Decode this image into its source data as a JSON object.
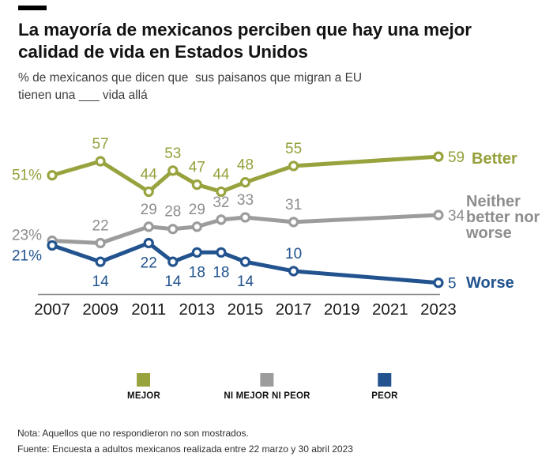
{
  "chart_data": {
    "type": "line",
    "title": "La mayoría de mexicanos perciben que hay una mejor calidad de vida en Estados Unidos",
    "title_lines": [
      "La mayoría de mexicanos perciben que hay una mejor",
      "calidad de vida en Estados Unidos"
    ],
    "subtitle_lines": [
      "% de mexicanos que dicen que  sus paisanos que migran a EU",
      "tienen una ___ vida allá"
    ],
    "x": [
      2007,
      2009,
      2011,
      2012,
      2013,
      2014,
      2015,
      2017,
      2023
    ],
    "x_tick_labels": [
      "2007",
      "2009",
      "2011",
      "2013",
      "2015",
      "2017",
      "2019",
      "2021",
      "2023"
    ],
    "ylim": [
      0,
      70
    ],
    "grid": false,
    "legend_position": "bottom",
    "series": [
      {
        "id": "better",
        "name": "Better",
        "color": "#99a33e",
        "label_color": "#96a03a",
        "values": [
          51,
          57,
          44,
          53,
          47,
          44,
          48,
          55,
          59
        ],
        "labels": [
          "51%",
          "57",
          "44",
          "53",
          "47",
          "44",
          "48",
          "55",
          "59"
        ],
        "label_positions": [
          "left",
          "above",
          "above",
          "above",
          "above",
          "above",
          "above",
          "above",
          "right"
        ]
      },
      {
        "id": "neither",
        "name": "Neither better nor worse",
        "name_lines": [
          "Neither",
          "better nor",
          "worse"
        ],
        "color": "#9c9c9c",
        "label_color": "#8d8d8d",
        "values": [
          23,
          22,
          29,
          28,
          29,
          32,
          33,
          31,
          34
        ],
        "labels": [
          "23%",
          "22",
          "29",
          "28",
          "29",
          "32",
          "33",
          "31",
          "34"
        ],
        "label_positions": [
          "left",
          "above",
          "above",
          "above",
          "above",
          "above",
          "above",
          "above",
          "right"
        ]
      },
      {
        "id": "worse",
        "name": "Worse",
        "color": "#22538e",
        "label_color": "#22538e",
        "values": [
          21,
          14,
          22,
          14,
          18,
          18,
          14,
          10,
          5
        ],
        "labels": [
          "21%",
          "14",
          "22",
          "14",
          "18",
          "18",
          "14",
          "10",
          "5"
        ],
        "label_positions": [
          "left",
          "below",
          "below",
          "below",
          "below",
          "below",
          "below",
          "above",
          "right"
        ]
      }
    ],
    "legend": [
      {
        "label": "MEJOR",
        "color": "#99a33e"
      },
      {
        "label": "NI MEJOR NI PEOR",
        "color": "#9c9c9c"
      },
      {
        "label": "PEOR",
        "color": "#22538e"
      }
    ],
    "note": "Nota: Aquellos que no respondieron no son mostrados.",
    "source": "Fuente: Encuesta a adultos mexicanos realizada entre 22 marzo y 30 abril 2023"
  }
}
